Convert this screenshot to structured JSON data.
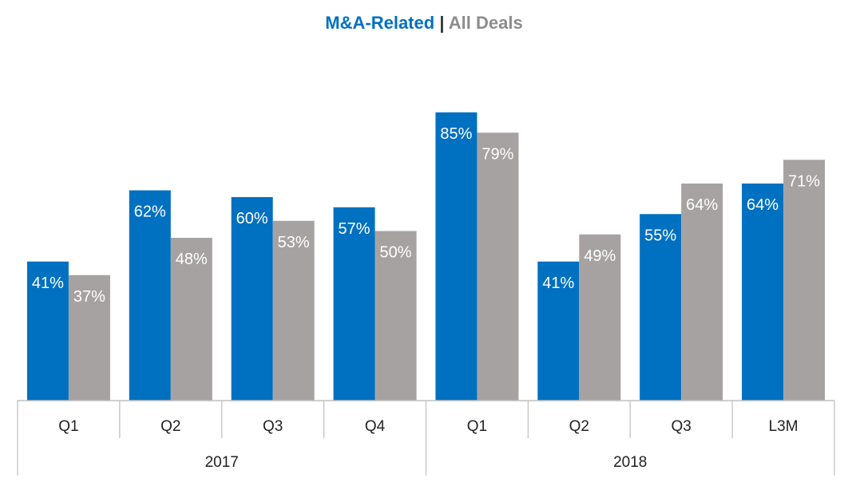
{
  "title": {
    "series1": "M&A-Related",
    "separator": "|",
    "series2": "All Deals"
  },
  "colors": {
    "series1": "#0070c0",
    "series2": "#a6a2a2",
    "axis": "#bfbfbf",
    "label": "#ffffff"
  },
  "chart_data": {
    "type": "bar",
    "categories": [
      "Q1",
      "Q2",
      "Q3",
      "Q4",
      "Q1",
      "Q2",
      "Q3",
      "L3M"
    ],
    "groups": [
      {
        "label": "2017",
        "categories": [
          "Q1",
          "Q2",
          "Q3",
          "Q4"
        ]
      },
      {
        "label": "2018",
        "categories": [
          "Q1",
          "Q2",
          "Q3",
          "L3M"
        ]
      }
    ],
    "series": [
      {
        "name": "M&A-Related",
        "values": [
          41,
          62,
          60,
          57,
          85,
          41,
          55,
          64
        ],
        "labels": [
          "41%",
          "62%",
          "60%",
          "57%",
          "85%",
          "41%",
          "55%",
          "64%"
        ]
      },
      {
        "name": "All Deals",
        "values": [
          37,
          48,
          53,
          50,
          79,
          49,
          64,
          71
        ],
        "labels": [
          "37%",
          "48%",
          "53%",
          "50%",
          "79%",
          "49%",
          "64%",
          "71%"
        ]
      }
    ],
    "ylim": [
      0,
      100
    ],
    "grid": false,
    "legend": "top-center"
  }
}
